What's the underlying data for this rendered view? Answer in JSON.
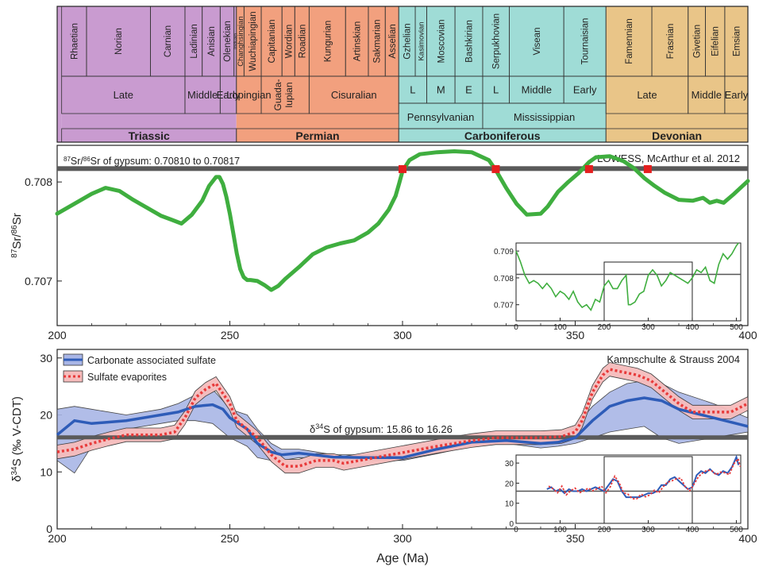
{
  "colors": {
    "triassic": "#c99bd0",
    "permian": "#f2a07e",
    "carboniferous": "#9fdcd6",
    "devonian": "#e9c588",
    "sr_curve": "#3fae3f",
    "gypsum_band": "#5a5a5a",
    "intersection": "#e51f1f",
    "cas_line": "#2e5cb8",
    "cas_band": "#a9b6e6",
    "evap_line": "#e83a3a",
    "evap_band": "#f6bcbc"
  },
  "timescale": {
    "stages": [
      {
        "name": "Rhaetian",
        "from": 201.3,
        "to": 208.5
      },
      {
        "name": "Norian",
        "from": 208.5,
        "to": 227
      },
      {
        "name": "Carnian",
        "from": 227,
        "to": 237
      },
      {
        "name": "Ladinian",
        "from": 237,
        "to": 242
      },
      {
        "name": "Anisian",
        "from": 242,
        "to": 247.2
      },
      {
        "name": "Olenekian",
        "from": 247.2,
        "to": 251.2
      },
      {
        "name": "Induan",
        "from": 251.2,
        "to": 251.9
      },
      {
        "name": "Changhsingian",
        "from": 251.9,
        "to": 254.1
      },
      {
        "name": "Wuchiapingian",
        "from": 254.1,
        "to": 259.1
      },
      {
        "name": "Capitanian",
        "from": 259.1,
        "to": 265.1
      },
      {
        "name": "Wordian",
        "from": 265.1,
        "to": 268.8
      },
      {
        "name": "Roadian",
        "from": 268.8,
        "to": 272.95
      },
      {
        "name": "Kungurian",
        "from": 272.95,
        "to": 283.5
      },
      {
        "name": "Artinskian",
        "from": 283.5,
        "to": 290.1
      },
      {
        "name": "Sakmarian",
        "from": 290.1,
        "to": 295
      },
      {
        "name": "Asselian",
        "from": 295,
        "to": 298.9
      },
      {
        "name": "Gzhelian",
        "from": 298.9,
        "to": 303.7
      },
      {
        "name": "Kasimovian",
        "from": 303.7,
        "to": 307
      },
      {
        "name": "Moscovian",
        "from": 307,
        "to": 315.2
      },
      {
        "name": "Bashkirian",
        "from": 315.2,
        "to": 323.2
      },
      {
        "name": "Serpukhovian",
        "from": 323.2,
        "to": 330.9
      },
      {
        "name": "Visean",
        "from": 330.9,
        "to": 346.7
      },
      {
        "name": "Tournaisian",
        "from": 346.7,
        "to": 358.9
      },
      {
        "name": "Famennian",
        "from": 358.9,
        "to": 372.2
      },
      {
        "name": "Frasnian",
        "from": 372.2,
        "to": 382.7
      },
      {
        "name": "Givetian",
        "from": 382.7,
        "to": 387.7
      },
      {
        "name": "Eifelian",
        "from": 387.7,
        "to": 393.3
      },
      {
        "name": "Emsian",
        "from": 393.3,
        "to": 400
      }
    ],
    "epochs": [
      {
        "name": "Late",
        "from": 201.3,
        "to": 237
      },
      {
        "name": "Middle",
        "from": 237,
        "to": 247.2
      },
      {
        "name": "Early",
        "from": 247.2,
        "to": 251.9
      },
      {
        "name": "Lopingian",
        "from": 251.9,
        "to": 259.1
      },
      {
        "name": "Guada-lupian",
        "from": 259.1,
        "to": 272.95
      },
      {
        "name": "Cisuralian",
        "from": 272.95,
        "to": 298.9
      },
      {
        "name": "L",
        "from": 298.9,
        "to": 307
      },
      {
        "name": "M",
        "from": 307,
        "to": 315.2
      },
      {
        "name": "E",
        "from": 315.2,
        "to": 323.2
      },
      {
        "name": "L",
        "from": 323.2,
        "to": 330.9
      },
      {
        "name": "Middle",
        "from": 330.9,
        "to": 346.7
      },
      {
        "name": "Early",
        "from": 346.7,
        "to": 358.9
      },
      {
        "name": "Late",
        "from": 358.9,
        "to": 382.7
      },
      {
        "name": "Middle",
        "from": 382.7,
        "to": 393.3
      },
      {
        "name": "Early",
        "from": 393.3,
        "to": 400
      }
    ],
    "subperiods": [
      {
        "name": "Pennsylvanian",
        "from": 298.9,
        "to": 323.2
      },
      {
        "name": "Mississippian",
        "from": 323.2,
        "to": 358.9
      }
    ],
    "periods": [
      {
        "name": "Triassic",
        "from": 201.3,
        "to": 251.9,
        "color_key": "triassic"
      },
      {
        "name": "Permian",
        "from": 251.9,
        "to": 298.9,
        "color_key": "permian"
      },
      {
        "name": "Carboniferous",
        "from": 298.9,
        "to": 358.9,
        "color_key": "carboniferous"
      },
      {
        "name": "Devonian",
        "from": 358.9,
        "to": 400,
        "color_key": "devonian"
      }
    ]
  },
  "chart_data": [
    {
      "type": "line",
      "source_label": "LOWESS, McArthur et al. 2012",
      "ylabel": "87Sr/86Sr",
      "xlim": [
        200,
        400
      ],
      "ylim": [
        0.70655,
        0.70837
      ],
      "xticks": [
        "200",
        "250",
        "300",
        "350",
        "400"
      ],
      "yticks": [
        {
          "value": 0.707,
          "label": "0.707"
        },
        {
          "value": 0.708,
          "label": "0.708"
        }
      ],
      "band": {
        "label": "87Sr/86Sr of gypsum: 0.70810 to 0.70817",
        "from": 0.7081,
        "to": 0.70817
      },
      "series": [
        {
          "x": [
            200,
            205,
            210,
            214,
            218,
            222,
            226,
            230,
            233,
            236,
            239,
            242,
            244,
            246,
            247,
            248,
            249,
            250,
            251,
            252,
            253,
            254,
            255,
            256,
            258,
            260,
            262,
            264,
            266,
            270,
            274,
            278,
            282,
            286,
            290,
            293,
            296,
            298,
            299,
            300,
            302,
            305,
            310,
            315,
            320,
            325,
            327,
            330,
            333,
            336,
            340,
            342,
            345,
            348,
            351,
            354,
            356,
            360,
            364,
            367,
            370,
            373,
            376,
            380,
            384,
            387,
            389,
            391,
            393,
            396,
            400
          ],
          "y": [
            0.70768,
            0.70778,
            0.70788,
            0.70794,
            0.70791,
            0.70782,
            0.70774,
            0.70766,
            0.70762,
            0.70758,
            0.70767,
            0.70781,
            0.70796,
            0.70805,
            0.70805,
            0.70798,
            0.70785,
            0.70768,
            0.70748,
            0.70728,
            0.70712,
            0.70704,
            0.70701,
            0.70701,
            0.707,
            0.70696,
            0.70691,
            0.70695,
            0.70702,
            0.70714,
            0.70727,
            0.70734,
            0.70738,
            0.70741,
            0.70749,
            0.70758,
            0.70772,
            0.70786,
            0.70798,
            0.70811,
            0.70822,
            0.70828,
            0.7083,
            0.70831,
            0.7083,
            0.70822,
            0.70812,
            0.70794,
            0.70778,
            0.70767,
            0.70768,
            0.70775,
            0.7079,
            0.708,
            0.70809,
            0.7082,
            0.70825,
            0.70826,
            0.70821,
            0.70814,
            0.70804,
            0.70796,
            0.70789,
            0.70782,
            0.70781,
            0.70784,
            0.70779,
            0.70781,
            0.70779,
            0.70788,
            0.70801
          ]
        }
      ],
      "intersections": [
        300,
        327,
        354,
        371
      ],
      "inset": {
        "xlim": [
          0,
          510
        ],
        "ylim": [
          0.7064,
          0.7093
        ],
        "xticks": [
          "0",
          "100",
          "200",
          "300",
          "400",
          "500"
        ],
        "yticks": [
          {
            "value": 0.707,
            "label": "0.707"
          },
          {
            "value": 0.708,
            "label": "0.708"
          },
          {
            "value": 0.709,
            "label": "0.709"
          }
        ],
        "band_value": 0.70813,
        "window": [
          200,
          400
        ],
        "x": [
          0,
          10,
          20,
          30,
          40,
          50,
          60,
          70,
          80,
          90,
          100,
          110,
          120,
          130,
          140,
          150,
          160,
          170,
          180,
          190,
          200,
          210,
          220,
          230,
          240,
          250,
          255,
          260,
          270,
          280,
          290,
          300,
          310,
          320,
          330,
          340,
          350,
          360,
          370,
          380,
          390,
          400,
          410,
          420,
          430,
          440,
          450,
          460,
          470,
          480,
          490,
          500,
          505
        ],
        "y": [
          0.709,
          0.7086,
          0.7081,
          0.7078,
          0.7079,
          0.7078,
          0.7076,
          0.7078,
          0.7076,
          0.7073,
          0.7075,
          0.7074,
          0.7072,
          0.7075,
          0.7071,
          0.7069,
          0.707,
          0.7068,
          0.7072,
          0.7071,
          0.7077,
          0.7079,
          0.7076,
          0.7076,
          0.7079,
          0.7081,
          0.707,
          0.707,
          0.7071,
          0.7074,
          0.7075,
          0.7081,
          0.7083,
          0.7081,
          0.7077,
          0.7079,
          0.7082,
          0.7081,
          0.708,
          0.7079,
          0.7078,
          0.708,
          0.7083,
          0.7082,
          0.7084,
          0.7079,
          0.7078,
          0.7085,
          0.7089,
          0.7087,
          0.7089,
          0.7092,
          0.7093
        ]
      }
    },
    {
      "type": "line",
      "source_label": "Kampschulte & Strauss 2004",
      "xlabel": "Age (Ma)",
      "ylabel": "δ34S (‰ V-CDT)",
      "xlim": [
        200,
        400
      ],
      "ylim": [
        0,
        31.5
      ],
      "xticks": [
        "200",
        "250",
        "300",
        "350",
        "400"
      ],
      "yticks": [
        "0",
        "10",
        "20",
        "30"
      ],
      "band": {
        "label": "δ34S of gypsum: 15.86 to 16.26",
        "from": 15.86,
        "to": 16.26
      },
      "series": [
        {
          "name": "Carbonate associated sulfate",
          "x": [
            200,
            205,
            210,
            220,
            230,
            235,
            240,
            245,
            248,
            250,
            255,
            258,
            262,
            265,
            270,
            280,
            290,
            300,
            310,
            320,
            330,
            340,
            345,
            350,
            355,
            360,
            365,
            370,
            375,
            380,
            390,
            400
          ],
          "y": [
            16.5,
            19,
            18.5,
            19,
            20,
            20.5,
            21.5,
            21.8,
            21,
            19.5,
            17.5,
            15,
            13.5,
            13,
            13.3,
            12.6,
            12.5,
            12.5,
            14,
            15.2,
            15.5,
            15,
            15.2,
            16,
            19,
            21.5,
            22.5,
            23,
            22.5,
            21,
            19.5,
            18
          ],
          "band_upper": [
            21,
            21.5,
            21,
            20,
            21,
            22,
            23.5,
            24.5,
            22.5,
            21,
            20,
            17.5,
            15,
            14,
            14,
            13,
            13,
            13.2,
            15,
            15.8,
            16,
            15.8,
            16.5,
            18,
            21.5,
            24,
            25.5,
            26,
            25.5,
            24,
            22,
            19.5
          ],
          "band_lower": [
            12,
            9.8,
            14.5,
            17.5,
            18.5,
            19,
            19,
            18.5,
            17,
            16,
            14.5,
            12.5,
            12,
            12,
            12.5,
            12.2,
            12,
            12,
            13.2,
            14.5,
            15,
            14.2,
            14.5,
            15,
            16,
            17,
            17.5,
            18,
            16,
            15,
            16,
            17
          ]
        },
        {
          "name": "Sulfate evaporites",
          "x": [
            200,
            205,
            210,
            215,
            220,
            225,
            230,
            234,
            237,
            240,
            243,
            246,
            250,
            252,
            255,
            258,
            262,
            266,
            270,
            275,
            280,
            283,
            310,
            320,
            327,
            340,
            346,
            350,
            352,
            355,
            358,
            360,
            364,
            368,
            372,
            376,
            380,
            384,
            390,
            395,
            400
          ],
          "y": [
            13.5,
            14,
            15,
            15.8,
            16.5,
            16.5,
            16.5,
            17,
            19.5,
            23,
            24.5,
            25.5,
            22,
            19,
            17.5,
            16,
            13,
            11,
            11,
            12,
            12,
            11.5,
            14.5,
            15.5,
            16,
            16,
            16.2,
            17,
            19,
            24,
            27,
            28,
            27.5,
            27,
            26,
            24,
            22,
            20.5,
            20.5,
            20.5,
            22
          ]
        }
      ],
      "inset": {
        "xlim": [
          0,
          510
        ],
        "ylim": [
          0,
          34
        ],
        "xticks": [
          "0",
          "100",
          "200",
          "300",
          "400",
          "500"
        ],
        "yticks": [
          "0",
          "10",
          "20",
          "30"
        ],
        "band_value": 16,
        "window": [
          200,
          400
        ],
        "x": [
          70,
          80,
          90,
          100,
          110,
          120,
          130,
          140,
          150,
          160,
          170,
          180,
          190,
          200,
          210,
          220,
          230,
          240,
          250,
          260,
          270,
          280,
          290,
          300,
          310,
          320,
          330,
          340,
          350,
          360,
          370,
          380,
          390,
          400,
          410,
          420,
          430,
          440,
          450,
          460,
          470,
          480,
          490,
          500,
          505
        ],
        "y": [
          17,
          18,
          16,
          17,
          15,
          17,
          16,
          16,
          17,
          16,
          17,
          18,
          17,
          16,
          19,
          22,
          21,
          16,
          13,
          13,
          13,
          13,
          14,
          15,
          15,
          16,
          19,
          19,
          22,
          23,
          21,
          19,
          17,
          18,
          24,
          26,
          25,
          27,
          25,
          24,
          26,
          25,
          28,
          33,
          29
        ]
      }
    }
  ]
}
